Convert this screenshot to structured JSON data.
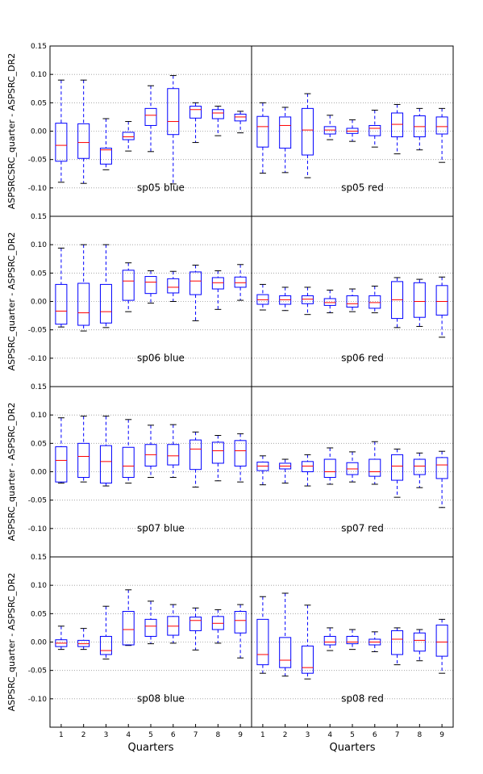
{
  "figure": {
    "x_ticks": [
      "1",
      "2",
      "3",
      "4",
      "5",
      "6",
      "7",
      "8",
      "9"
    ],
    "x_label": "Quarters",
    "y_ticks": [
      "0.15",
      "0.10",
      "0.05",
      "0.00",
      "-0.05",
      "-0.10"
    ],
    "y_tick_values": [
      0.15,
      0.1,
      0.05,
      0.0,
      -0.05,
      -0.1
    ],
    "y_labels": [
      "ASPSRCSRC_quarter - ASPSRC_DR2",
      "ASPSRC_quarter - ASPSRC_DR2",
      "ASPSRC_quarter - ASPSRC_DR2",
      "ASPSRC_quarter - ASPSRC_DR2"
    ],
    "colors": {
      "box": "#0000ff",
      "median": "#ff0000",
      "grid": "#999999",
      "axes": "#000000"
    }
  },
  "chart_data": [
    {
      "type": "box",
      "title": "sp05 blue",
      "categories": [
        "1",
        "2",
        "3",
        "4",
        "5",
        "6",
        "7",
        "8",
        "9"
      ],
      "ylim": [
        -0.15,
        0.15
      ],
      "grid": true,
      "boxes": [
        {
          "whislo": -0.09,
          "q1": -0.053,
          "med": -0.025,
          "q3": 0.014,
          "whishi": 0.09
        },
        {
          "whislo": -0.092,
          "q1": -0.048,
          "med": -0.02,
          "q3": 0.013,
          "whishi": 0.09
        },
        {
          "whislo": -0.068,
          "q1": -0.058,
          "med": -0.033,
          "q3": -0.03,
          "whishi": 0.022
        },
        {
          "whislo": -0.035,
          "q1": -0.015,
          "med": -0.01,
          "q3": -0.002,
          "whishi": 0.017
        },
        {
          "whislo": -0.036,
          "q1": 0.01,
          "med": 0.028,
          "q3": 0.04,
          "whishi": 0.08
        },
        {
          "whislo": -0.093,
          "q1": -0.006,
          "med": 0.017,
          "q3": 0.075,
          "whishi": 0.098
        },
        {
          "whislo": -0.02,
          "q1": 0.023,
          "med": 0.038,
          "q3": 0.044,
          "whishi": 0.05
        },
        {
          "whislo": -0.008,
          "q1": 0.022,
          "med": 0.032,
          "q3": 0.038,
          "whishi": 0.044
        },
        {
          "whislo": -0.003,
          "q1": 0.018,
          "med": 0.025,
          "q3": 0.03,
          "whishi": 0.035
        }
      ]
    },
    {
      "type": "box",
      "title": "sp05 red",
      "categories": [
        "1",
        "2",
        "3",
        "4",
        "5",
        "6",
        "7",
        "8",
        "9"
      ],
      "ylim": [
        -0.15,
        0.15
      ],
      "grid": true,
      "boxes": [
        {
          "whislo": -0.074,
          "q1": -0.028,
          "med": 0.008,
          "q3": 0.026,
          "whishi": 0.05
        },
        {
          "whislo": -0.073,
          "q1": -0.03,
          "med": 0.01,
          "q3": 0.025,
          "whishi": 0.042
        },
        {
          "whislo": -0.082,
          "q1": -0.042,
          "med": 0.002,
          "q3": 0.04,
          "whishi": 0.066
        },
        {
          "whislo": -0.015,
          "q1": -0.005,
          "med": 0.002,
          "q3": 0.008,
          "whishi": 0.028
        },
        {
          "whislo": -0.018,
          "q1": -0.004,
          "med": 0.0,
          "q3": 0.005,
          "whishi": 0.02
        },
        {
          "whislo": -0.028,
          "q1": -0.008,
          "med": 0.005,
          "q3": 0.01,
          "whishi": 0.037
        },
        {
          "whislo": -0.04,
          "q1": -0.01,
          "med": 0.012,
          "q3": 0.032,
          "whishi": 0.047
        },
        {
          "whislo": -0.033,
          "q1": -0.01,
          "med": 0.008,
          "q3": 0.027,
          "whishi": 0.04
        },
        {
          "whislo": -0.055,
          "q1": -0.005,
          "med": 0.008,
          "q3": 0.025,
          "whishi": 0.04
        }
      ]
    },
    {
      "type": "box",
      "title": "sp06 blue",
      "categories": [
        "1",
        "2",
        "3",
        "4",
        "5",
        "6",
        "7",
        "8",
        "9"
      ],
      "ylim": [
        -0.15,
        0.15
      ],
      "grid": true,
      "boxes": [
        {
          "whislo": -0.045,
          "q1": -0.04,
          "med": -0.017,
          "q3": 0.03,
          "whishi": 0.094
        },
        {
          "whislo": -0.052,
          "q1": -0.042,
          "med": -0.02,
          "q3": 0.032,
          "whishi": 0.1
        },
        {
          "whislo": -0.046,
          "q1": -0.038,
          "med": -0.018,
          "q3": 0.03,
          "whishi": 0.1
        },
        {
          "whislo": -0.018,
          "q1": 0.002,
          "med": 0.036,
          "q3": 0.055,
          "whishi": 0.068
        },
        {
          "whislo": -0.003,
          "q1": 0.014,
          "med": 0.034,
          "q3": 0.044,
          "whishi": 0.054
        },
        {
          "whislo": 0.0,
          "q1": 0.015,
          "med": 0.025,
          "q3": 0.04,
          "whishi": 0.053
        },
        {
          "whislo": -0.034,
          "q1": 0.012,
          "med": 0.036,
          "q3": 0.052,
          "whishi": 0.064
        },
        {
          "whislo": -0.014,
          "q1": 0.022,
          "med": 0.033,
          "q3": 0.042,
          "whishi": 0.054
        },
        {
          "whislo": 0.002,
          "q1": 0.025,
          "med": 0.033,
          "q3": 0.043,
          "whishi": 0.065
        }
      ]
    },
    {
      "type": "box",
      "title": "sp06 red",
      "categories": [
        "1",
        "2",
        "3",
        "4",
        "5",
        "6",
        "7",
        "8",
        "9"
      ],
      "ylim": [
        -0.15,
        0.15
      ],
      "grid": true,
      "boxes": [
        {
          "whislo": -0.015,
          "q1": -0.005,
          "med": 0.003,
          "q3": 0.012,
          "whishi": 0.03
        },
        {
          "whislo": -0.016,
          "q1": -0.005,
          "med": 0.003,
          "q3": 0.01,
          "whishi": 0.025
        },
        {
          "whislo": -0.023,
          "q1": -0.004,
          "med": 0.004,
          "q3": 0.01,
          "whishi": 0.025
        },
        {
          "whislo": -0.02,
          "q1": -0.007,
          "med": -0.002,
          "q3": 0.005,
          "whishi": 0.02
        },
        {
          "whislo": -0.018,
          "q1": -0.01,
          "med": -0.004,
          "q3": 0.01,
          "whishi": 0.022
        },
        {
          "whislo": -0.02,
          "q1": -0.012,
          "med": -0.002,
          "q3": 0.01,
          "whishi": 0.027
        },
        {
          "whislo": -0.046,
          "q1": -0.03,
          "med": 0.003,
          "q3": 0.035,
          "whishi": 0.042
        },
        {
          "whislo": -0.044,
          "q1": -0.028,
          "med": 0.0,
          "q3": 0.033,
          "whishi": 0.039
        },
        {
          "whislo": -0.063,
          "q1": -0.024,
          "med": 0.0,
          "q3": 0.028,
          "whishi": 0.043
        }
      ]
    },
    {
      "type": "box",
      "title": "sp07 blue",
      "categories": [
        "1",
        "2",
        "3",
        "4",
        "5",
        "6",
        "7",
        "8",
        "9"
      ],
      "ylim": [
        -0.15,
        0.15
      ],
      "grid": true,
      "boxes": [
        {
          "whislo": -0.02,
          "q1": -0.018,
          "med": 0.02,
          "q3": 0.044,
          "whishi": 0.095
        },
        {
          "whislo": -0.018,
          "q1": -0.01,
          "med": 0.027,
          "q3": 0.05,
          "whishi": 0.098
        },
        {
          "whislo": -0.025,
          "q1": -0.02,
          "med": 0.018,
          "q3": 0.046,
          "whishi": 0.098
        },
        {
          "whislo": -0.02,
          "q1": -0.01,
          "med": 0.01,
          "q3": 0.043,
          "whishi": 0.092
        },
        {
          "whislo": -0.01,
          "q1": 0.01,
          "med": 0.03,
          "q3": 0.048,
          "whishi": 0.082
        },
        {
          "whislo": -0.01,
          "q1": 0.012,
          "med": 0.028,
          "q3": 0.048,
          "whishi": 0.083
        },
        {
          "whislo": -0.027,
          "q1": 0.004,
          "med": 0.04,
          "q3": 0.056,
          "whishi": 0.07
        },
        {
          "whislo": -0.016,
          "q1": 0.015,
          "med": 0.037,
          "q3": 0.052,
          "whishi": 0.064
        },
        {
          "whislo": -0.018,
          "q1": 0.01,
          "med": 0.037,
          "q3": 0.055,
          "whishi": 0.067
        }
      ]
    },
    {
      "type": "box",
      "title": "sp07 red",
      "categories": [
        "1",
        "2",
        "3",
        "4",
        "5",
        "6",
        "7",
        "8",
        "9"
      ],
      "ylim": [
        -0.15,
        0.15
      ],
      "grid": true,
      "boxes": [
        {
          "whislo": -0.023,
          "q1": 0.002,
          "med": 0.01,
          "q3": 0.017,
          "whishi": 0.028
        },
        {
          "whislo": -0.02,
          "q1": 0.005,
          "med": 0.01,
          "q3": 0.015,
          "whishi": 0.022
        },
        {
          "whislo": -0.025,
          "q1": 0.0,
          "med": 0.01,
          "q3": 0.018,
          "whishi": 0.03
        },
        {
          "whislo": -0.022,
          "q1": -0.01,
          "med": 0.0,
          "q3": 0.022,
          "whishi": 0.042
        },
        {
          "whislo": -0.018,
          "q1": -0.005,
          "med": 0.005,
          "q3": 0.016,
          "whishi": 0.035
        },
        {
          "whislo": -0.022,
          "q1": -0.008,
          "med": 0.0,
          "q3": 0.022,
          "whishi": 0.053
        },
        {
          "whislo": -0.045,
          "q1": -0.015,
          "med": 0.01,
          "q3": 0.03,
          "whishi": 0.04
        },
        {
          "whislo": -0.028,
          "q1": -0.005,
          "med": 0.01,
          "q3": 0.022,
          "whishi": 0.033
        },
        {
          "whislo": -0.063,
          "q1": -0.012,
          "med": 0.012,
          "q3": 0.025,
          "whishi": 0.036
        }
      ]
    },
    {
      "type": "box",
      "title": "sp08 blue",
      "categories": [
        "1",
        "2",
        "3",
        "4",
        "5",
        "6",
        "7",
        "8",
        "9"
      ],
      "ylim": [
        -0.15,
        0.15
      ],
      "grid": true,
      "boxes": [
        {
          "whislo": -0.013,
          "q1": -0.008,
          "med": -0.002,
          "q3": 0.004,
          "whishi": 0.028
        },
        {
          "whislo": -0.013,
          "q1": -0.008,
          "med": -0.003,
          "q3": 0.003,
          "whishi": 0.024
        },
        {
          "whislo": -0.03,
          "q1": -0.022,
          "med": -0.015,
          "q3": 0.01,
          "whishi": 0.063
        },
        {
          "whislo": -0.006,
          "q1": -0.005,
          "med": 0.022,
          "q3": 0.054,
          "whishi": 0.092
        },
        {
          "whislo": -0.003,
          "q1": 0.01,
          "med": 0.028,
          "q3": 0.04,
          "whishi": 0.072
        },
        {
          "whislo": -0.002,
          "q1": 0.012,
          "med": 0.028,
          "q3": 0.045,
          "whishi": 0.066
        },
        {
          "whislo": -0.014,
          "q1": 0.02,
          "med": 0.038,
          "q3": 0.044,
          "whishi": 0.06
        },
        {
          "whislo": -0.002,
          "q1": 0.022,
          "med": 0.033,
          "q3": 0.045,
          "whishi": 0.057
        },
        {
          "whislo": -0.028,
          "q1": 0.016,
          "med": 0.038,
          "q3": 0.054,
          "whishi": 0.066
        }
      ]
    },
    {
      "type": "box",
      "title": "sp08 red",
      "categories": [
        "1",
        "2",
        "3",
        "4",
        "5",
        "6",
        "7",
        "8",
        "9"
      ],
      "ylim": [
        -0.15,
        0.15
      ],
      "grid": true,
      "boxes": [
        {
          "whislo": -0.055,
          "q1": -0.04,
          "med": -0.022,
          "q3": 0.04,
          "whishi": 0.08
        },
        {
          "whislo": -0.06,
          "q1": -0.045,
          "med": -0.032,
          "q3": 0.008,
          "whishi": 0.086
        },
        {
          "whislo": -0.065,
          "q1": -0.055,
          "med": -0.045,
          "q3": -0.007,
          "whishi": 0.065
        },
        {
          "whislo": -0.015,
          "q1": -0.005,
          "med": 0.0,
          "q3": 0.01,
          "whishi": 0.025
        },
        {
          "whislo": -0.013,
          "q1": -0.003,
          "med": 0.0,
          "q3": 0.01,
          "whishi": 0.022
        },
        {
          "whislo": -0.017,
          "q1": -0.005,
          "med": 0.0,
          "q3": 0.005,
          "whishi": 0.018
        },
        {
          "whislo": -0.04,
          "q1": -0.022,
          "med": 0.005,
          "q3": 0.02,
          "whishi": 0.025
        },
        {
          "whislo": -0.033,
          "q1": -0.016,
          "med": 0.003,
          "q3": 0.016,
          "whishi": 0.022
        },
        {
          "whislo": -0.055,
          "q1": -0.025,
          "med": 0.0,
          "q3": 0.03,
          "whishi": 0.04
        }
      ]
    }
  ]
}
